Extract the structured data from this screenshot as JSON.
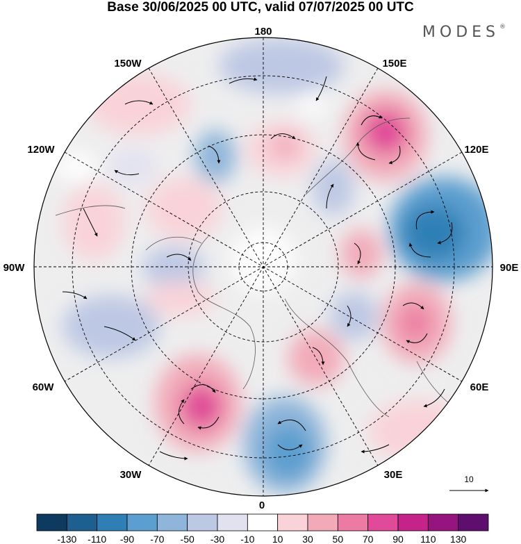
{
  "title": "Base 30/06/2025 00 UTC, valid 07/07/2025 00 UTC",
  "brand": "MODES",
  "brand_mark": "®",
  "longitude_labels": [
    {
      "id": "lon-180",
      "text": "180"
    },
    {
      "id": "lon-150e",
      "text": "150E"
    },
    {
      "id": "lon-120e",
      "text": "120E"
    },
    {
      "id": "lon-90e",
      "text": "90E"
    },
    {
      "id": "lon-60e",
      "text": "60E"
    },
    {
      "id": "lon-30e",
      "text": "30E"
    },
    {
      "id": "lon-0",
      "text": "0"
    },
    {
      "id": "lon-30w",
      "text": "30W"
    },
    {
      "id": "lon-60w",
      "text": "60W"
    },
    {
      "id": "lon-90w",
      "text": "90W"
    },
    {
      "id": "lon-120w",
      "text": "120W"
    },
    {
      "id": "lon-150w",
      "text": "150W"
    }
  ],
  "reference_vector": {
    "value": "10"
  },
  "colorbar": {
    "colors": [
      "#0f3a5f",
      "#1d5f8f",
      "#2f7fb5",
      "#5b9ecf",
      "#8fb5da",
      "#bdc8e4",
      "#e2e1f0",
      "#ffffff",
      "#f9d3d9",
      "#f2aab8",
      "#ec7aa3",
      "#e04a98",
      "#c5238a",
      "#97147f",
      "#5e0f6e"
    ],
    "tick_labels": [
      "-130",
      "-110",
      "-90",
      "-70",
      "-50",
      "-30",
      "-10",
      "10",
      "30",
      "50",
      "70",
      "90",
      "110",
      "130"
    ]
  }
}
